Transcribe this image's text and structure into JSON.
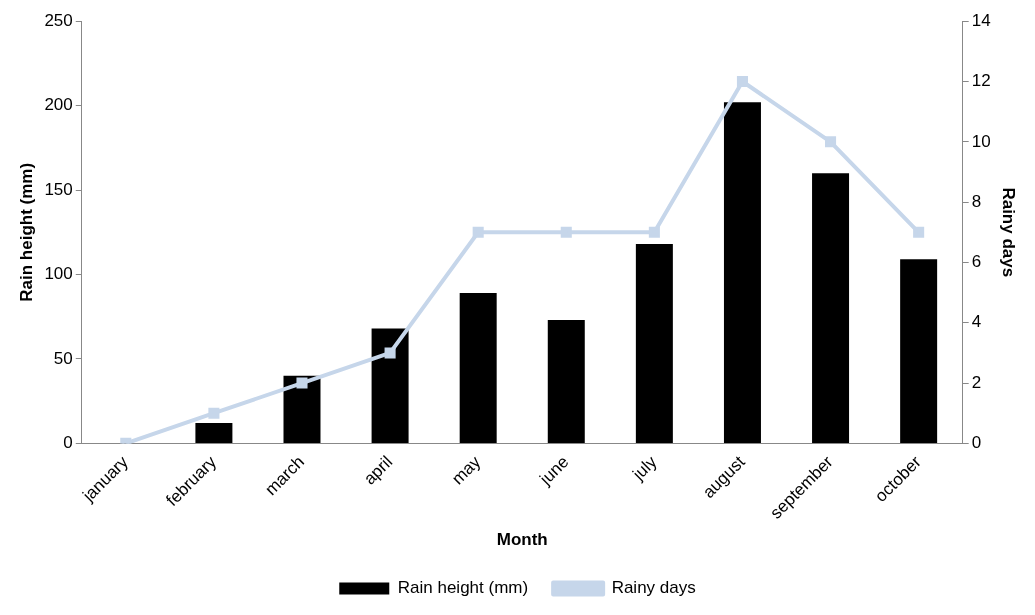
{
  "chart_data": {
    "type": "bar",
    "xlabel": "Month",
    "ylabel": "Rain height (mm)",
    "y2label": "Rainy days",
    "categories": [
      "january",
      "february",
      "march",
      "april",
      "may",
      "june",
      "july",
      "august",
      "september",
      "october"
    ],
    "series": [
      {
        "name": "Rain height (mm)",
        "color": "#000000",
        "values": [
          0,
          12,
          40,
          68,
          89,
          73,
          118,
          202,
          160,
          109
        ]
      },
      {
        "name": "Rainy days",
        "type": "line",
        "axis": "y2",
        "color": "#c6d6ea",
        "marker": "square",
        "values": [
          0,
          1,
          2,
          3,
          7,
          7,
          7,
          12,
          10,
          7
        ]
      }
    ],
    "ylim": [
      0,
      250
    ],
    "yticks": [
      0,
      50,
      100,
      150,
      200,
      250
    ],
    "y2lim": [
      0,
      14
    ],
    "y2ticks": [
      0,
      2,
      4,
      6,
      8,
      10,
      12,
      14
    ],
    "grid": false,
    "legend": "bottom"
  }
}
